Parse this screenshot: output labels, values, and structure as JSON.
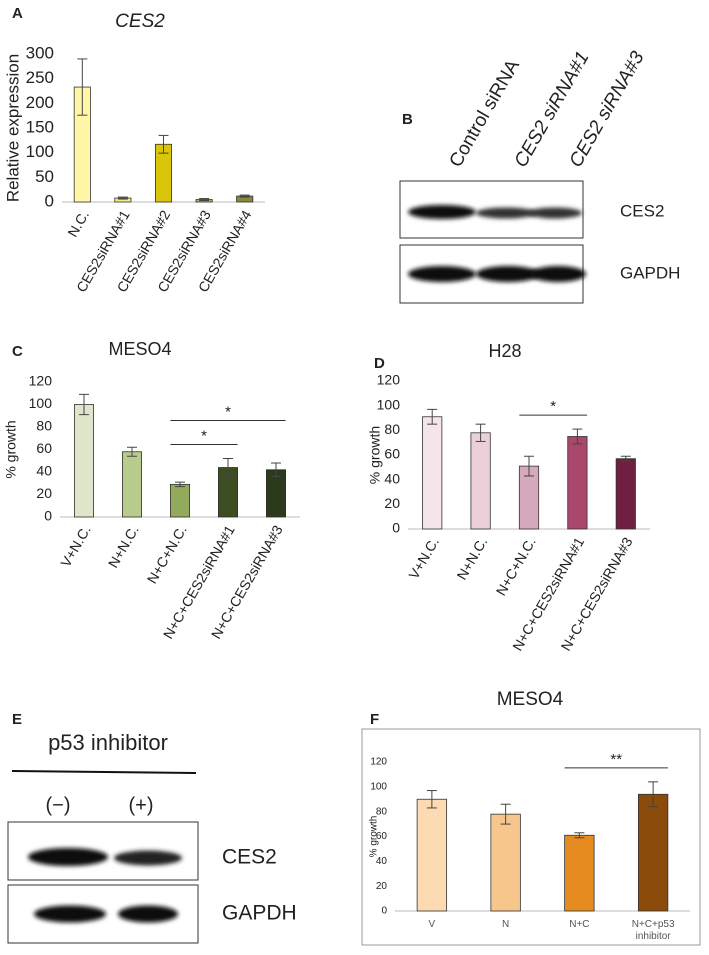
{
  "chart_data": [
    {
      "type": "bar",
      "panel": "A",
      "title": "CES2",
      "y_label": "Relative expression",
      "categories": [
        "N.C.",
        "CES2siRNA#1",
        "CES2siRNA#2",
        "CES2siRNA#3",
        "CES2siRNA#4"
      ],
      "values": [
        233,
        8,
        117,
        5,
        12
      ],
      "errors": [
        57,
        2,
        18,
        2,
        2
      ],
      "colors": [
        "#fff6a6",
        "#f8ea82",
        "#d9c60a",
        "#c2b43a",
        "#8c8738"
      ],
      "ylim": [
        0,
        300
      ],
      "yticks": [
        0,
        50,
        100,
        150,
        200,
        250,
        300
      ],
      "grid": false
    },
    {
      "type": "bar",
      "panel": "C",
      "title": "MESO4",
      "y_label": "% growth",
      "categories": [
        "V+N.C.",
        "N+N.C.",
        "N+C+N.C.",
        "N+C+CES2siRNA#1",
        "N+C+CES2siRNA#3"
      ],
      "values": [
        100,
        58,
        29,
        44,
        42
      ],
      "errors": [
        9,
        4,
        2,
        8,
        6
      ],
      "colors": [
        "#dfe6c9",
        "#b7cb8c",
        "#91aa5c",
        "#3c4d22",
        "#2b3a1b"
      ],
      "ylim": [
        0,
        120
      ],
      "yticks": [
        0,
        20,
        40,
        60,
        80,
        100,
        120
      ],
      "grid": false,
      "significance": [
        {
          "label": "*",
          "categories": [
            2,
            4
          ]
        },
        {
          "label": "*",
          "categories": [
            2,
            3
          ]
        }
      ]
    },
    {
      "type": "bar",
      "panel": "D",
      "title": "H28",
      "y_label": "% growth",
      "categories": [
        "V+N.C.",
        "N+N.C.",
        "N+C+N.C.",
        "N+C+CES2siRNA#1",
        "N+C+CES2siRNA#3"
      ],
      "values": [
        91,
        78,
        51,
        75,
        57
      ],
      "errors": [
        6,
        7,
        8,
        6,
        2
      ],
      "colors": [
        "#f6e4ec",
        "#ebcfda",
        "#d7a9bc",
        "#a9476d",
        "#6f1f40"
      ],
      "ylim": [
        0,
        120
      ],
      "yticks": [
        0,
        20,
        40,
        60,
        80,
        100,
        120
      ],
      "grid": false,
      "significance": [
        {
          "label": "*",
          "categories": [
            2,
            3
          ]
        }
      ]
    },
    {
      "type": "bar",
      "panel": "F",
      "title": "MESO4",
      "y_label": "% growth",
      "categories": [
        "V",
        "N",
        "N+C",
        "N+C+p53 inhibitor"
      ],
      "values": [
        90,
        78,
        61,
        94
      ],
      "errors": [
        7,
        8,
        2,
        10
      ],
      "colors": [
        "#fcdab2",
        "#f7c68c",
        "#e58b1f",
        "#8b4b0b"
      ],
      "ylim": [
        0,
        120
      ],
      "yticks": [
        0,
        20,
        40,
        60,
        80,
        100,
        120
      ],
      "grid": false,
      "significance": [
        {
          "label": "**",
          "categories": [
            2,
            3
          ]
        }
      ]
    }
  ],
  "blot_b": {
    "panel": "B",
    "lanes": [
      "Control siRNA",
      "CES2 siRNA#1",
      "CES2 siRNA#3"
    ],
    "bands": [
      "CES2",
      "GAPDH"
    ]
  },
  "blot_e": {
    "panel": "E",
    "treatment": "p53 inhibitor",
    "lanes": [
      "(−)",
      "(+)"
    ],
    "bands": [
      "CES2",
      "GAPDH"
    ]
  }
}
